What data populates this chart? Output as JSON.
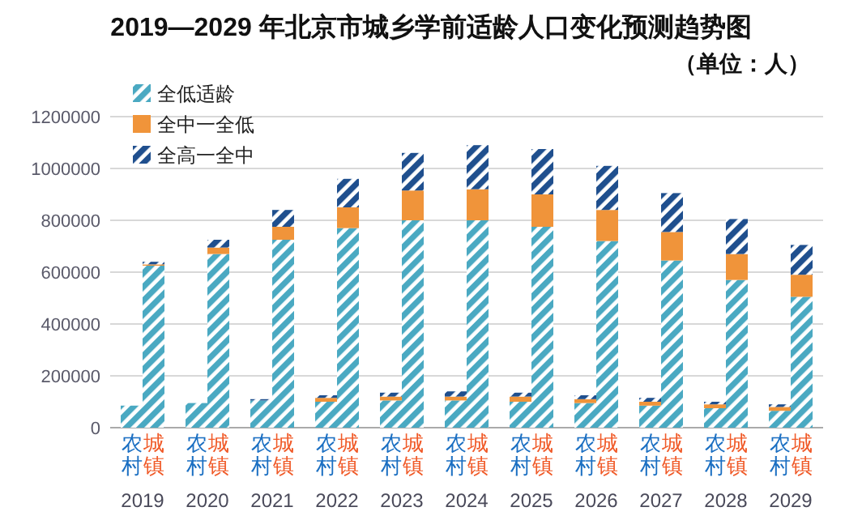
{
  "chart_data": {
    "type": "bar",
    "title": "2019—2029 年北京市城乡学前适龄人口变化预测趋势图",
    "subtitle": "（单位：人）",
    "categories": [
      "农村",
      "城镇",
      "农村",
      "城镇",
      "农村",
      "城镇",
      "农村",
      "城镇",
      "农村",
      "城镇",
      "农村",
      "城镇",
      "农村",
      "城镇",
      "农村",
      "城镇",
      "农村",
      "城镇",
      "农村",
      "城镇",
      "农村",
      "城镇"
    ],
    "annotations": [
      "2019",
      "2020",
      "2021",
      "2022",
      "2023",
      "2024",
      "2025",
      "2026",
      "2027",
      "2028",
      "2029"
    ],
    "stacked": true,
    "series": [
      {
        "name": "全低适龄",
        "color": "#4aa9c2",
        "values": [
          85000,
          625000,
          95000,
          670000,
          105000,
          725000,
          100000,
          770000,
          105000,
          800000,
          105000,
          800000,
          100000,
          775000,
          95000,
          720000,
          85000,
          645000,
          75000,
          570000,
          65000,
          505000
        ]
      },
      {
        "name": "全中一全低",
        "color": "#f0943a",
        "values": [
          null,
          5000,
          null,
          25000,
          null,
          50000,
          15000,
          80000,
          15000,
          115000,
          15000,
          120000,
          20000,
          125000,
          15000,
          120000,
          15000,
          110000,
          15000,
          100000,
          15000,
          85000
        ]
      },
      {
        "name": "全高一全中",
        "color": "#1f4f8e",
        "values": [
          null,
          10000,
          null,
          30000,
          5000,
          65000,
          10000,
          110000,
          15000,
          145000,
          20000,
          170000,
          15000,
          175000,
          15000,
          170000,
          15000,
          150000,
          10000,
          135000,
          10000,
          115000
        ]
      }
    ],
    "ylim": [
      0,
      1200000
    ],
    "yticks": [
      0,
      200000,
      400000,
      600000,
      800000,
      1000000,
      1200000
    ],
    "grid": "y",
    "legend": "top left"
  }
}
